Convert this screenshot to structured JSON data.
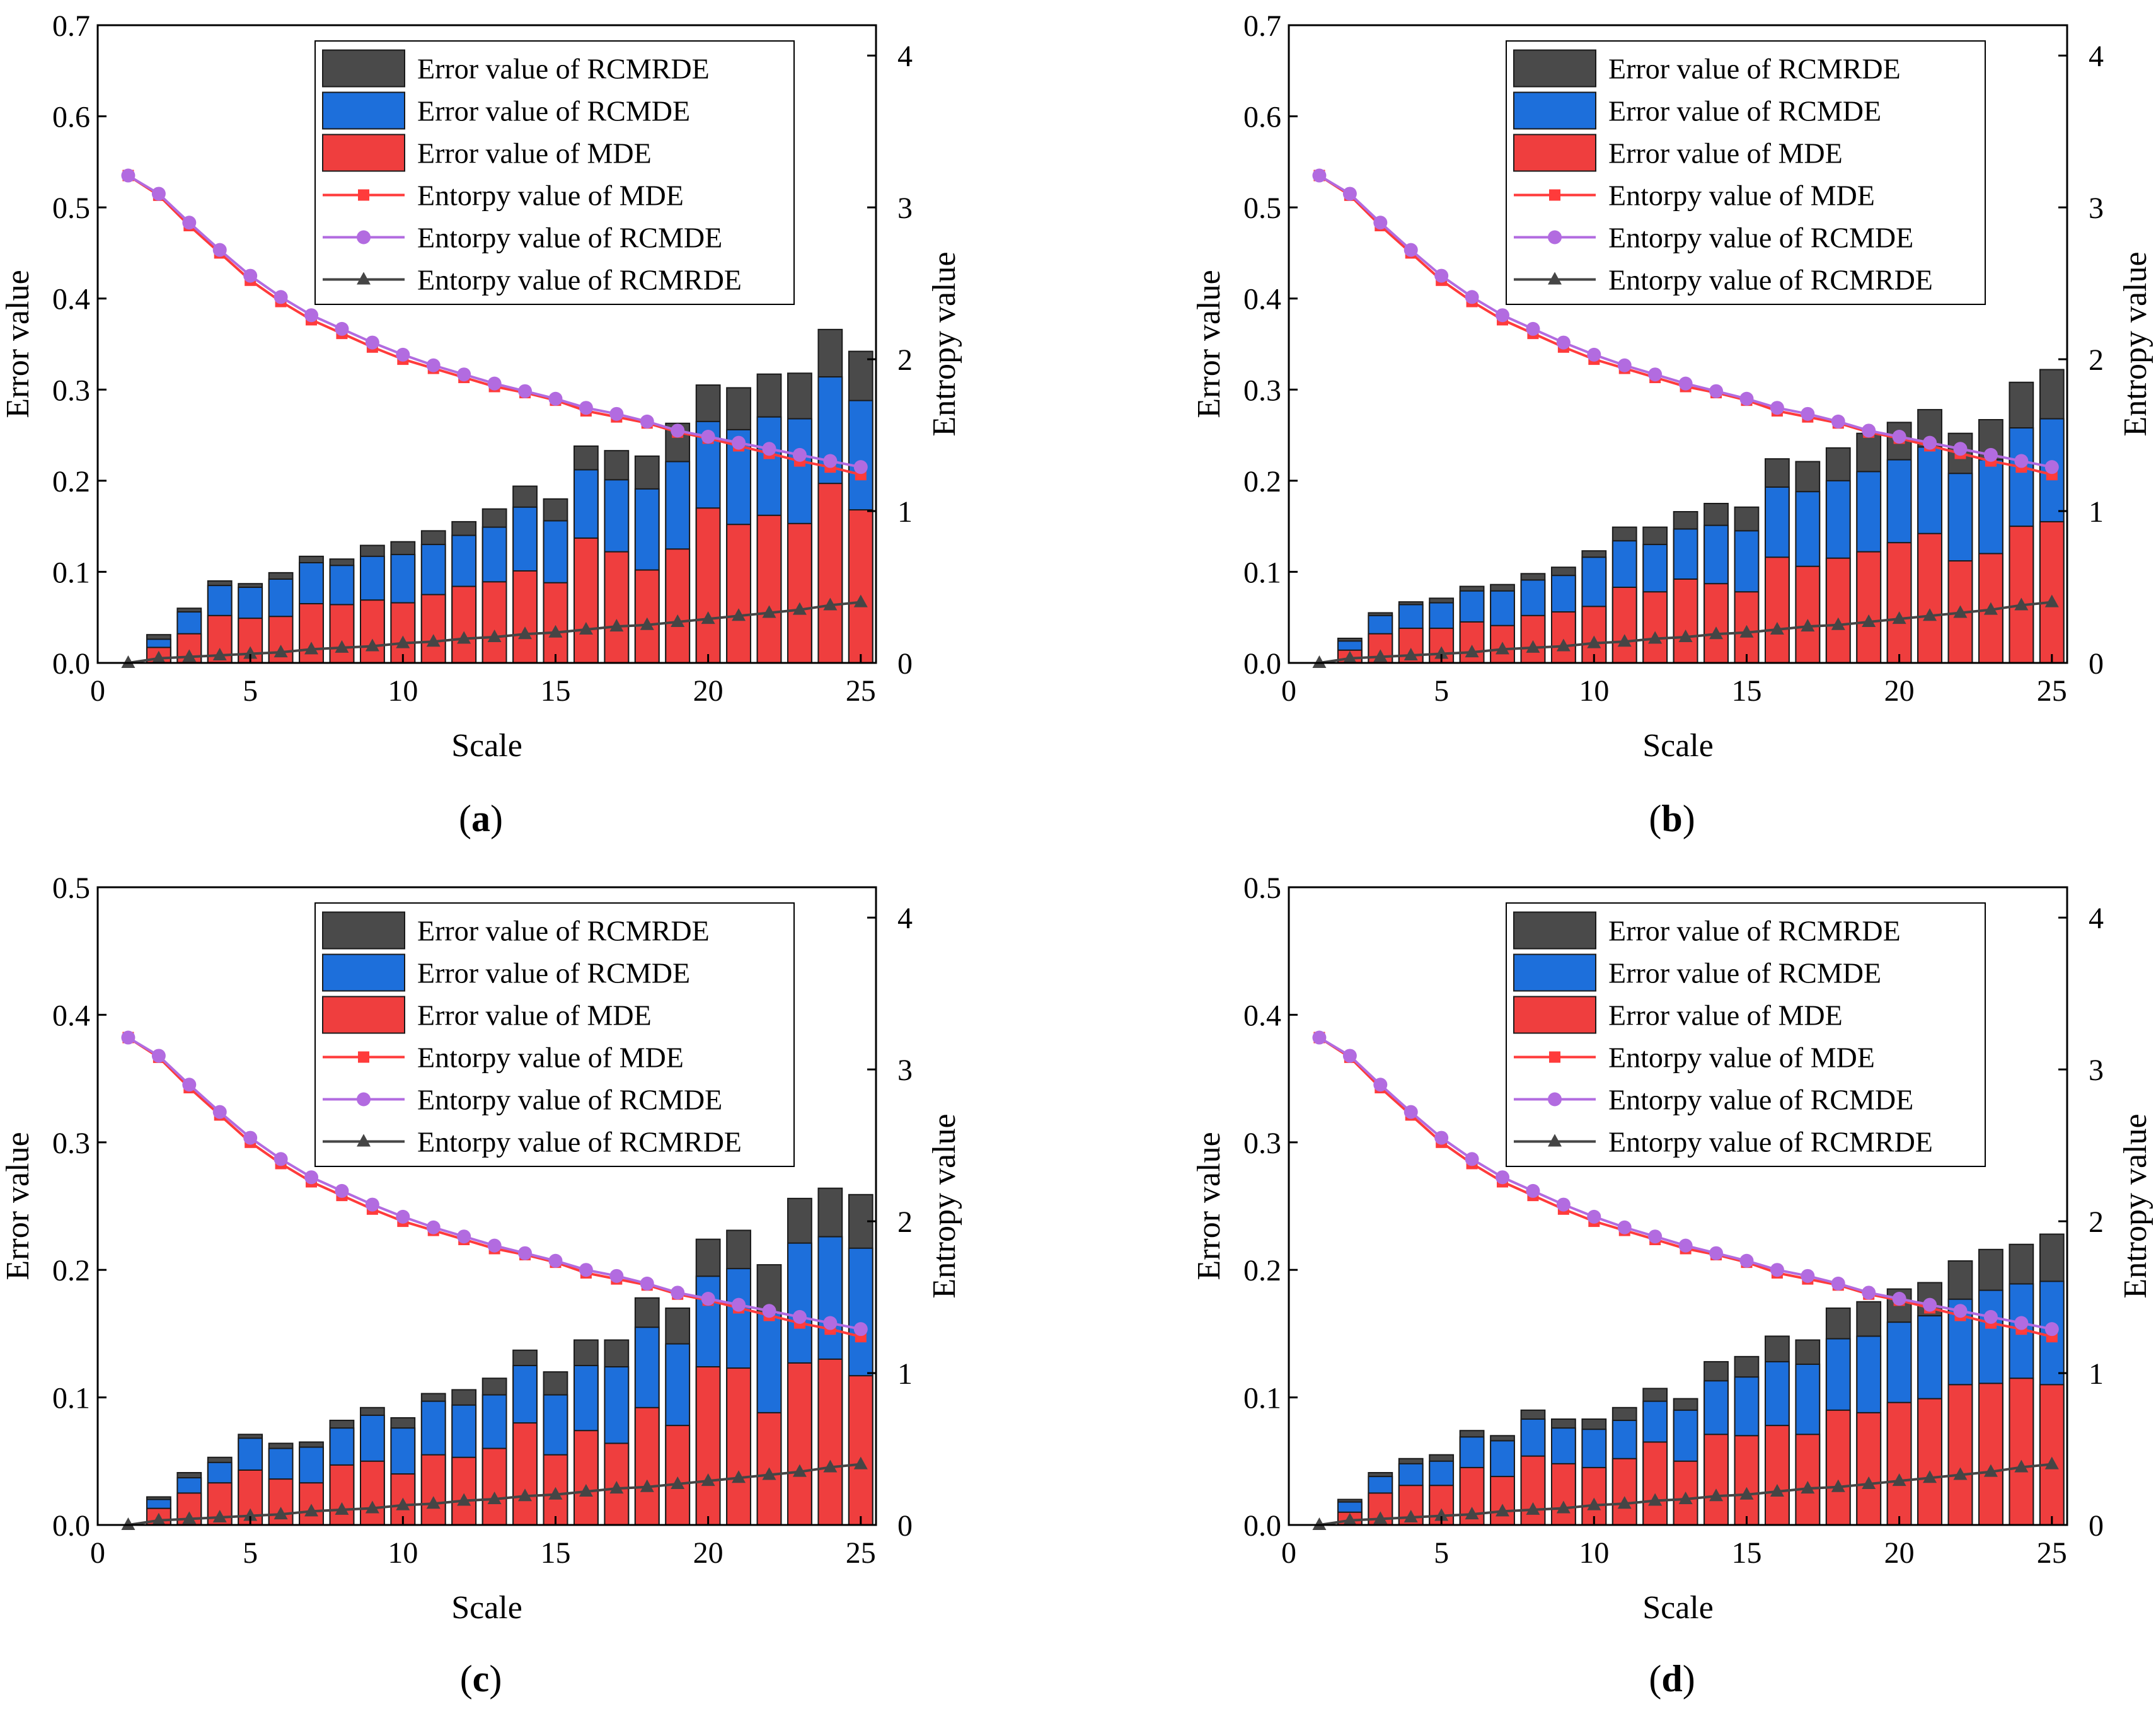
{
  "colors": {
    "mde_bar": "#ef3e3e",
    "rcmde_bar": "#1d6fdb",
    "rcmrde_bar": "#4a4a4a",
    "mde_line": "#ff3b3b",
    "rcmde_line": "#b26be0",
    "rcmrde_line": "#454545"
  },
  "chart_data": [
    {
      "panel": "a",
      "type": "bar",
      "stacked": true,
      "xlabel": "Scale",
      "ylabel": "Error value",
      "y2label": "Entropy value",
      "xlim": [
        0,
        25.5
      ],
      "xticks": [
        0,
        5,
        10,
        15,
        20,
        25
      ],
      "ylim": [
        0,
        0.7
      ],
      "yticks": [
        "0.0",
        "0.1",
        "0.2",
        "0.3",
        "0.4",
        "0.5",
        "0.6",
        "0.7"
      ],
      "y2lim": [
        0,
        4.2
      ],
      "y2ticks": [
        "0",
        "1",
        "2",
        "3",
        "4"
      ],
      "legend_position": "top-right",
      "legend": [
        "Error value of RCMRDE",
        "Error value of RCMDE",
        "Error value of MDE",
        "Entorpy value of MDE",
        "Entorpy value of RCMDE",
        "Entorpy value of RCMRDE"
      ],
      "x": [
        1,
        2,
        3,
        4,
        5,
        6,
        7,
        8,
        9,
        10,
        11,
        12,
        13,
        14,
        15,
        16,
        17,
        18,
        19,
        20,
        21,
        22,
        23,
        24,
        25
      ],
      "bars": {
        "mde": [
          0,
          0.017,
          0.032,
          0.052,
          0.049,
          0.051,
          0.065,
          0.064,
          0.069,
          0.066,
          0.075,
          0.084,
          0.089,
          0.101,
          0.088,
          0.137,
          0.122,
          0.102,
          0.125,
          0.17,
          0.152,
          0.162,
          0.153,
          0.197,
          0.168
        ],
        "rcmde": [
          0,
          0.026,
          0.056,
          0.085,
          0.083,
          0.092,
          0.11,
          0.107,
          0.117,
          0.119,
          0.13,
          0.14,
          0.149,
          0.171,
          0.156,
          0.212,
          0.201,
          0.191,
          0.221,
          0.265,
          0.256,
          0.27,
          0.268,
          0.314,
          0.288
        ],
        "rcmrde": [
          0,
          0.031,
          0.06,
          0.09,
          0.087,
          0.099,
          0.117,
          0.114,
          0.129,
          0.133,
          0.145,
          0.155,
          0.169,
          0.194,
          0.18,
          0.238,
          0.233,
          0.227,
          0.263,
          0.305,
          0.302,
          0.317,
          0.318,
          0.366,
          0.342
        ]
      },
      "entropy": {
        "mde": [
          3.21,
          3.08,
          2.88,
          2.7,
          2.52,
          2.38,
          2.26,
          2.17,
          2.08,
          2.0,
          1.94,
          1.88,
          1.82,
          1.78,
          1.73,
          1.66,
          1.62,
          1.58,
          1.52,
          1.48,
          1.43,
          1.38,
          1.33,
          1.29,
          1.24
        ],
        "rcmde": [
          3.21,
          3.09,
          2.9,
          2.72,
          2.55,
          2.41,
          2.29,
          2.2,
          2.11,
          2.03,
          1.96,
          1.9,
          1.84,
          1.79,
          1.74,
          1.68,
          1.64,
          1.59,
          1.53,
          1.49,
          1.45,
          1.41,
          1.37,
          1.33,
          1.29
        ],
        "rcmrde": [
          0,
          0.03,
          0.04,
          0.05,
          0.06,
          0.07,
          0.09,
          0.1,
          0.11,
          0.13,
          0.14,
          0.16,
          0.17,
          0.19,
          0.2,
          0.22,
          0.24,
          0.25,
          0.27,
          0.29,
          0.31,
          0.33,
          0.35,
          0.38,
          0.4
        ]
      }
    },
    {
      "panel": "b",
      "type": "bar",
      "stacked": true,
      "xlabel": "Scale",
      "ylabel": "Error value",
      "y2label": "Entropy value",
      "xlim": [
        0,
        25.5
      ],
      "xticks": [
        0,
        5,
        10,
        15,
        20,
        25
      ],
      "ylim": [
        0,
        0.7
      ],
      "yticks": [
        "0.0",
        "0.1",
        "0.2",
        "0.3",
        "0.4",
        "0.5",
        "0.6",
        "0.7"
      ],
      "y2lim": [
        0,
        4.2
      ],
      "y2ticks": [
        "0",
        "1",
        "2",
        "3",
        "4"
      ],
      "legend_position": "top-right",
      "legend": [
        "Error value of RCMRDE",
        "Error value of RCMDE",
        "Error value of MDE",
        "Entorpy value of MDE",
        "Entorpy value of RCMDE",
        "Entorpy value of RCMRDE"
      ],
      "x": [
        1,
        2,
        3,
        4,
        5,
        6,
        7,
        8,
        9,
        10,
        11,
        12,
        13,
        14,
        15,
        16,
        17,
        18,
        19,
        20,
        21,
        22,
        23,
        24,
        25
      ],
      "bars": {
        "mde": [
          0,
          0.014,
          0.032,
          0.038,
          0.038,
          0.045,
          0.041,
          0.052,
          0.056,
          0.062,
          0.083,
          0.078,
          0.092,
          0.087,
          0.078,
          0.116,
          0.106,
          0.115,
          0.122,
          0.132,
          0.142,
          0.112,
          0.12,
          0.15,
          0.155
        ],
        "rcmde": [
          0,
          0.024,
          0.052,
          0.064,
          0.066,
          0.079,
          0.079,
          0.091,
          0.096,
          0.116,
          0.134,
          0.13,
          0.147,
          0.151,
          0.145,
          0.193,
          0.188,
          0.2,
          0.21,
          0.223,
          0.237,
          0.208,
          0.223,
          0.258,
          0.268
        ],
        "rcmrde": [
          0,
          0.027,
          0.055,
          0.067,
          0.071,
          0.084,
          0.086,
          0.098,
          0.105,
          0.123,
          0.149,
          0.149,
          0.166,
          0.175,
          0.171,
          0.224,
          0.221,
          0.236,
          0.252,
          0.264,
          0.278,
          0.252,
          0.267,
          0.308,
          0.322
        ]
      },
      "entropy": {
        "mde": [
          3.21,
          3.08,
          2.88,
          2.7,
          2.52,
          2.38,
          2.26,
          2.17,
          2.08,
          2.0,
          1.94,
          1.88,
          1.82,
          1.78,
          1.73,
          1.66,
          1.62,
          1.58,
          1.52,
          1.48,
          1.43,
          1.38,
          1.33,
          1.29,
          1.24
        ],
        "rcmde": [
          3.21,
          3.09,
          2.9,
          2.72,
          2.55,
          2.41,
          2.29,
          2.2,
          2.11,
          2.03,
          1.96,
          1.9,
          1.84,
          1.79,
          1.74,
          1.68,
          1.64,
          1.59,
          1.53,
          1.49,
          1.45,
          1.41,
          1.37,
          1.33,
          1.29
        ],
        "rcmrde": [
          0,
          0.03,
          0.04,
          0.05,
          0.06,
          0.07,
          0.09,
          0.1,
          0.11,
          0.13,
          0.14,
          0.16,
          0.17,
          0.19,
          0.2,
          0.22,
          0.24,
          0.25,
          0.27,
          0.29,
          0.31,
          0.33,
          0.35,
          0.38,
          0.4
        ]
      }
    },
    {
      "panel": "c",
      "type": "bar",
      "stacked": true,
      "xlabel": "Scale",
      "ylabel": "Error value",
      "y2label": "Entropy value",
      "xlim": [
        0,
        25.5
      ],
      "xticks": [
        0,
        5,
        10,
        15,
        20,
        25
      ],
      "ylim": [
        0,
        0.5
      ],
      "yticks": [
        "0.0",
        "0.1",
        "0.2",
        "0.3",
        "0.4",
        "0.5"
      ],
      "y2lim": [
        0,
        4.2
      ],
      "y2ticks": [
        "0",
        "1",
        "2",
        "3",
        "4"
      ],
      "legend_position": "top-right",
      "legend": [
        "Error value of RCMRDE",
        "Error value of RCMDE",
        "Error value of MDE",
        "Entorpy value of MDE",
        "Entorpy value of RCMDE",
        "Entorpy value of RCMRDE"
      ],
      "x": [
        1,
        2,
        3,
        4,
        5,
        6,
        7,
        8,
        9,
        10,
        11,
        12,
        13,
        14,
        15,
        16,
        17,
        18,
        19,
        20,
        21,
        22,
        23,
        24,
        25
      ],
      "bars": {
        "mde": [
          0,
          0.013,
          0.025,
          0.033,
          0.043,
          0.036,
          0.033,
          0.047,
          0.05,
          0.04,
          0.055,
          0.053,
          0.06,
          0.08,
          0.055,
          0.074,
          0.064,
          0.092,
          0.078,
          0.124,
          0.123,
          0.088,
          0.127,
          0.13,
          0.117
        ],
        "rcmde": [
          0,
          0.02,
          0.037,
          0.049,
          0.068,
          0.06,
          0.061,
          0.076,
          0.086,
          0.076,
          0.097,
          0.094,
          0.102,
          0.125,
          0.102,
          0.125,
          0.124,
          0.155,
          0.142,
          0.195,
          0.201,
          0.166,
          0.221,
          0.226,
          0.217
        ],
        "rcmrde": [
          0,
          0.022,
          0.041,
          0.053,
          0.071,
          0.064,
          0.065,
          0.082,
          0.092,
          0.084,
          0.103,
          0.106,
          0.115,
          0.137,
          0.12,
          0.145,
          0.145,
          0.178,
          0.17,
          0.224,
          0.231,
          0.204,
          0.256,
          0.264,
          0.259
        ]
      },
      "entropy": {
        "mde": [
          3.21,
          3.08,
          2.88,
          2.7,
          2.52,
          2.38,
          2.26,
          2.17,
          2.08,
          2.0,
          1.94,
          1.88,
          1.82,
          1.78,
          1.73,
          1.66,
          1.62,
          1.58,
          1.52,
          1.48,
          1.43,
          1.38,
          1.33,
          1.29,
          1.24
        ],
        "rcmde": [
          3.21,
          3.09,
          2.9,
          2.72,
          2.55,
          2.41,
          2.29,
          2.2,
          2.11,
          2.03,
          1.96,
          1.9,
          1.84,
          1.79,
          1.74,
          1.68,
          1.64,
          1.59,
          1.53,
          1.49,
          1.45,
          1.41,
          1.37,
          1.33,
          1.29
        ],
        "rcmrde": [
          0,
          0.03,
          0.04,
          0.05,
          0.06,
          0.07,
          0.09,
          0.1,
          0.11,
          0.13,
          0.14,
          0.16,
          0.17,
          0.19,
          0.2,
          0.22,
          0.24,
          0.25,
          0.27,
          0.29,
          0.31,
          0.33,
          0.35,
          0.38,
          0.4
        ]
      }
    },
    {
      "panel": "d",
      "type": "bar",
      "stacked": true,
      "xlabel": "Scale",
      "ylabel": "Error value",
      "y2label": "Entropy value",
      "xlim": [
        0,
        25.5
      ],
      "xticks": [
        0,
        5,
        10,
        15,
        20,
        25
      ],
      "ylim": [
        0,
        0.5
      ],
      "yticks": [
        "0.0",
        "0.1",
        "0.2",
        "0.3",
        "0.4",
        "0.5"
      ],
      "y2lim": [
        0,
        4.2
      ],
      "y2ticks": [
        "0",
        "1",
        "2",
        "3",
        "4"
      ],
      "legend_position": "top-right",
      "legend": [
        "Error value of RCMRDE",
        "Error value of RCMDE",
        "Error value of MDE",
        "Entorpy value of MDE",
        "Entorpy value of RCMDE",
        "Entorpy value of RCMRDE"
      ],
      "x": [
        1,
        2,
        3,
        4,
        5,
        6,
        7,
        8,
        9,
        10,
        11,
        12,
        13,
        14,
        15,
        16,
        17,
        18,
        19,
        20,
        21,
        22,
        23,
        24,
        25
      ],
      "bars": {
        "mde": [
          0,
          0.01,
          0.025,
          0.031,
          0.031,
          0.045,
          0.038,
          0.054,
          0.048,
          0.045,
          0.052,
          0.065,
          0.05,
          0.071,
          0.07,
          0.078,
          0.071,
          0.09,
          0.088,
          0.096,
          0.099,
          0.11,
          0.111,
          0.115,
          0.11
        ],
        "rcmde": [
          0,
          0.018,
          0.038,
          0.048,
          0.05,
          0.069,
          0.066,
          0.083,
          0.076,
          0.075,
          0.082,
          0.097,
          0.09,
          0.113,
          0.116,
          0.128,
          0.126,
          0.146,
          0.148,
          0.159,
          0.164,
          0.177,
          0.184,
          0.189,
          0.191
        ],
        "rcmrde": [
          0,
          0.02,
          0.041,
          0.052,
          0.055,
          0.074,
          0.07,
          0.09,
          0.083,
          0.083,
          0.092,
          0.107,
          0.099,
          0.128,
          0.132,
          0.148,
          0.145,
          0.17,
          0.175,
          0.185,
          0.19,
          0.207,
          0.216,
          0.22,
          0.228
        ]
      },
      "entropy": {
        "mde": [
          3.21,
          3.08,
          2.88,
          2.7,
          2.52,
          2.38,
          2.26,
          2.17,
          2.08,
          2.0,
          1.94,
          1.88,
          1.82,
          1.78,
          1.73,
          1.66,
          1.62,
          1.58,
          1.52,
          1.48,
          1.43,
          1.38,
          1.33,
          1.29,
          1.24
        ],
        "rcmde": [
          3.21,
          3.09,
          2.9,
          2.72,
          2.55,
          2.41,
          2.29,
          2.2,
          2.11,
          2.03,
          1.96,
          1.9,
          1.84,
          1.79,
          1.74,
          1.68,
          1.64,
          1.59,
          1.53,
          1.49,
          1.45,
          1.41,
          1.37,
          1.33,
          1.29
        ],
        "rcmrde": [
          0,
          0.03,
          0.04,
          0.05,
          0.06,
          0.07,
          0.09,
          0.1,
          0.11,
          0.13,
          0.14,
          0.16,
          0.17,
          0.19,
          0.2,
          0.22,
          0.24,
          0.25,
          0.27,
          0.29,
          0.31,
          0.33,
          0.35,
          0.38,
          0.4
        ]
      }
    }
  ],
  "captions": {
    "a": "a",
    "b": "b",
    "c": "c",
    "d": "d"
  }
}
